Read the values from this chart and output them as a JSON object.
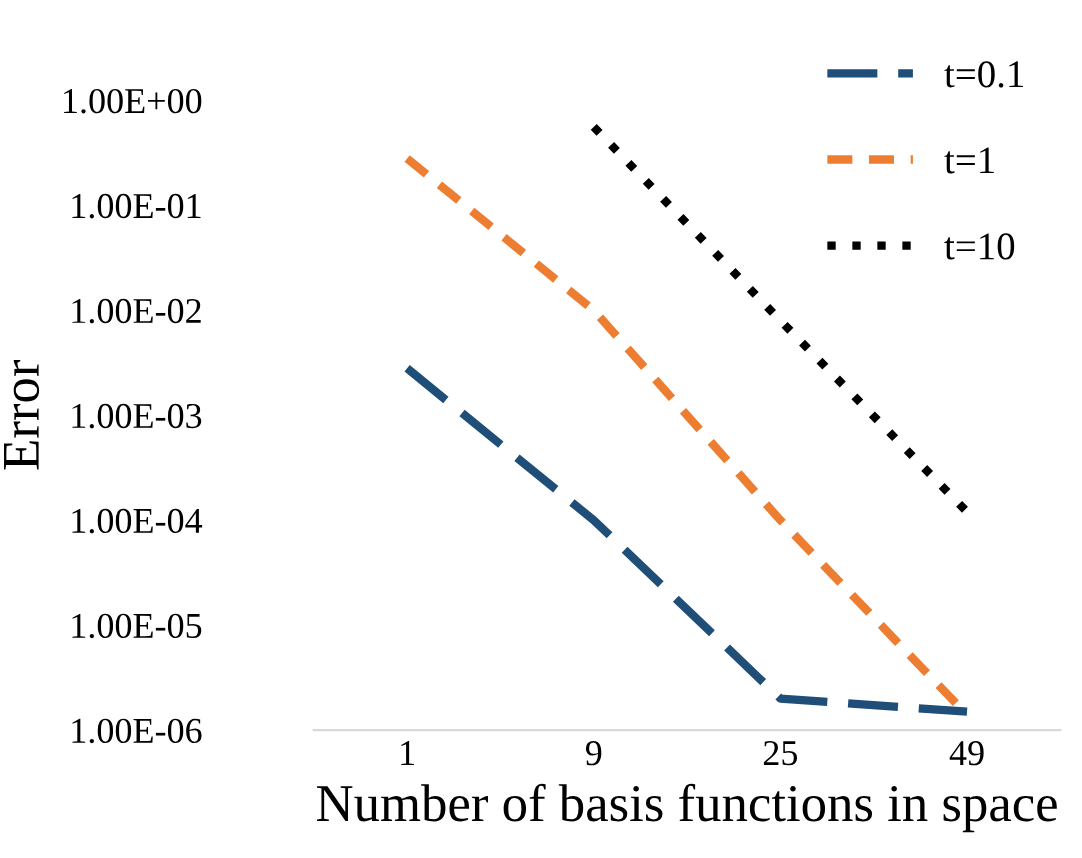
{
  "chart_data": {
    "type": "line",
    "xlabel": "Number of basis functions in space",
    "ylabel": "Error",
    "categories": [
      "1",
      "9",
      "25",
      "49"
    ],
    "log": "y",
    "ylim": [
      1e-06,
      1
    ],
    "yticks": [
      {
        "value": 1e-06,
        "label": "1.00E-06"
      },
      {
        "value": 1e-05,
        "label": "1.00E-05"
      },
      {
        "value": 0.0001,
        "label": "1.00E-04"
      },
      {
        "value": 0.001,
        "label": "1.00E-03"
      },
      {
        "value": 0.01,
        "label": "1.00E-02"
      },
      {
        "value": 0.1,
        "label": "1.00E-01"
      },
      {
        "value": 1,
        "label": "1.00E+00"
      }
    ],
    "grid": false,
    "legend": "top right",
    "series": [
      {
        "name": "t=0.1",
        "color": "#1f4e79",
        "line_style": "dashed",
        "values": [
          0.0028,
          0.0001,
          2e-06,
          1.5e-06
        ]
      },
      {
        "name": "t=1",
        "color": "#ed7d31",
        "line_style": "dashed",
        "values": [
          0.28,
          0.01,
          0.0001,
          1.4e-06
        ]
      },
      {
        "name": "t=10",
        "color": "#000000",
        "line_style": "dotted",
        "values": [
          null,
          0.56,
          0.008,
          0.00012
        ]
      }
    ]
  }
}
